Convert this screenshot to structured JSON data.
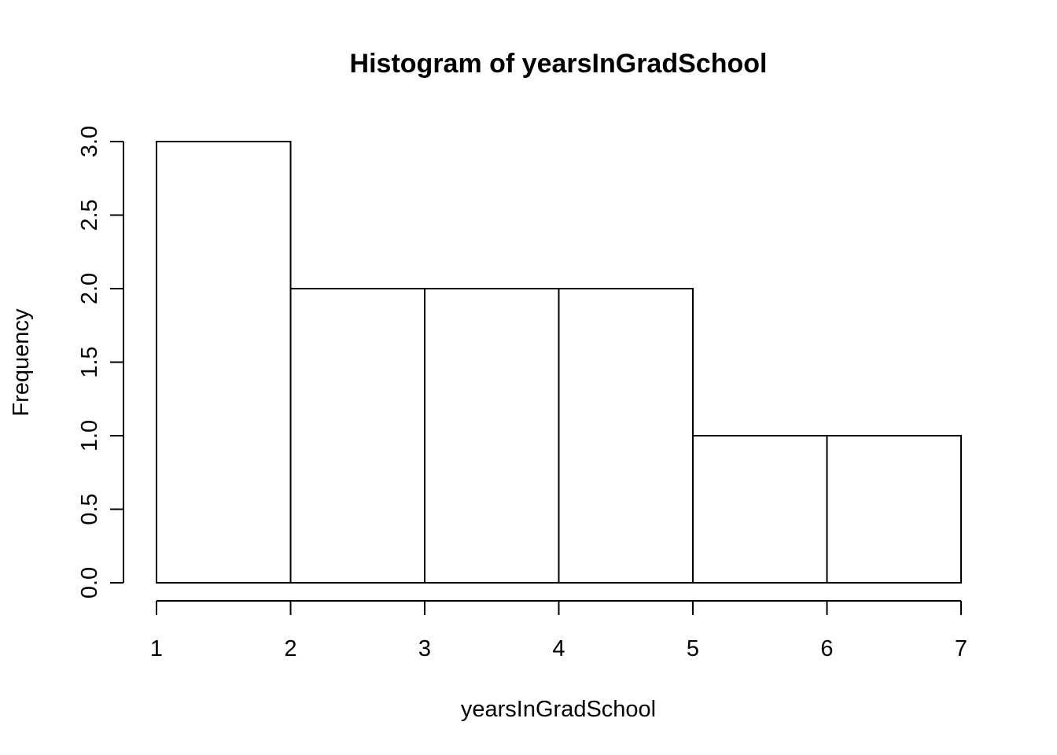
{
  "chart_data": {
    "type": "bar",
    "title": "Histogram of yearsInGradSchool",
    "xlabel": "yearsInGradSchool",
    "ylabel": "Frequency",
    "bins": [
      {
        "start": 1,
        "end": 2,
        "count": 3
      },
      {
        "start": 2,
        "end": 3,
        "count": 2
      },
      {
        "start": 3,
        "end": 4,
        "count": 2
      },
      {
        "start": 4,
        "end": 5,
        "count": 2
      },
      {
        "start": 5,
        "end": 6,
        "count": 1
      },
      {
        "start": 6,
        "end": 7,
        "count": 1
      }
    ],
    "categories": [
      "1-2",
      "2-3",
      "3-4",
      "4-5",
      "5-6",
      "6-7"
    ],
    "values": [
      3,
      2,
      2,
      2,
      1,
      1
    ],
    "xlim": [
      1,
      7
    ],
    "ylim": [
      0,
      3
    ],
    "x_ticks": [
      "1",
      "2",
      "3",
      "4",
      "5",
      "6",
      "7"
    ],
    "y_ticks": [
      "0.0",
      "0.5",
      "1.0",
      "1.5",
      "2.0",
      "2.5",
      "3.0"
    ],
    "grid": false,
    "bar_fill": "#ffffff",
    "bar_stroke": "#000000"
  }
}
